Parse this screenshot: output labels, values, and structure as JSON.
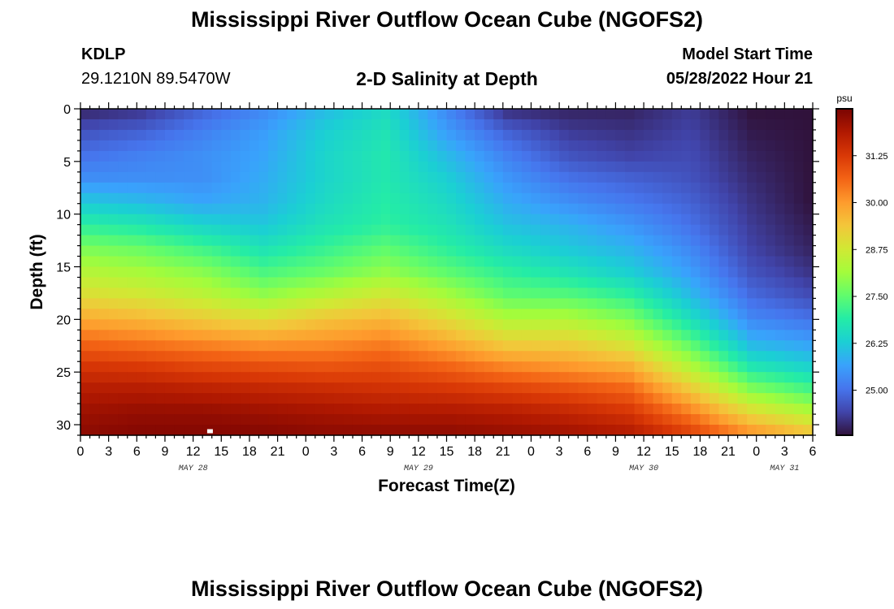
{
  "header": {
    "title": "Mississippi River Outflow Ocean Cube (NGOFS2)",
    "station_id": "KDLP",
    "coordinates": "29.1210N  89.5470W",
    "subtitle": "2-D Salinity at Depth",
    "model_start_label": "Model Start Time",
    "model_start_value": "05/28/2022 Hour 21"
  },
  "footer": {
    "title": "Mississippi River Outflow Ocean Cube (NGOFS2)"
  },
  "chart_data": {
    "type": "heatmap",
    "title": "2-D Salinity at Depth",
    "xlabel": "Forecast Time(Z)",
    "ylabel": "Depth (ft)",
    "x_tick_labels": [
      "0",
      "3",
      "6",
      "9",
      "12",
      "15",
      "18",
      "21",
      "0",
      "3",
      "6",
      "9",
      "12",
      "15",
      "18",
      "21",
      "0",
      "3",
      "6",
      "9",
      "12",
      "15",
      "18",
      "21",
      "0",
      "3",
      "6"
    ],
    "date_labels": [
      "MAY 28",
      "MAY 29",
      "MAY 30",
      "MAY 31"
    ],
    "x_range_hours": [
      0,
      78
    ],
    "y_range_ft": [
      0,
      31
    ],
    "y_ticks": [
      0,
      5,
      10,
      15,
      20,
      25,
      30
    ],
    "colorbar": {
      "unit": "psu",
      "tick_labels": [
        "25.00",
        "26.25",
        "27.50",
        "28.75",
        "30.00",
        "31.25"
      ],
      "tick_values": [
        25.0,
        26.25,
        27.5,
        28.75,
        30.0,
        31.25
      ],
      "range": [
        23.8,
        32.5
      ],
      "colors": [
        "#30123b",
        "#4145ab",
        "#4675ed",
        "#39a2fc",
        "#1bcfd4",
        "#24eca6",
        "#61fc6c",
        "#a4fc3b",
        "#d1e834",
        "#f3c63a",
        "#fe9b2d",
        "#f36315",
        "#d93806",
        "#b11901",
        "#7a0402"
      ]
    },
    "salinity_psu": [
      [
        24.0,
        24.2,
        24.8,
        25.3,
        26.0,
        26.5,
        25.3,
        24.1,
        24.0,
        24.0,
        24.3,
        23.8,
        23.8
      ],
      [
        24.6,
        24.8,
        25.2,
        25.6,
        26.3,
        26.7,
        25.6,
        24.8,
        24.3,
        24.2,
        24.4,
        23.9,
        23.8
      ],
      [
        25.0,
        25.2,
        25.4,
        25.7,
        26.4,
        26.8,
        26.0,
        25.2,
        24.6,
        24.4,
        24.5,
        24.0,
        23.8
      ],
      [
        25.4,
        25.4,
        25.4,
        25.8,
        26.4,
        26.8,
        26.3,
        25.5,
        25.0,
        24.8,
        24.6,
        24.1,
        23.8
      ],
      [
        26.2,
        26.0,
        25.7,
        25.9,
        26.5,
        26.9,
        26.5,
        25.8,
        25.4,
        25.1,
        24.8,
        24.2,
        23.8
      ],
      [
        27.0,
        26.8,
        26.4,
        26.2,
        26.7,
        27.0,
        26.7,
        26.1,
        25.9,
        25.5,
        25.0,
        24.3,
        23.9
      ],
      [
        27.8,
        27.6,
        27.2,
        26.7,
        27.1,
        27.5,
        27.0,
        26.5,
        26.2,
        25.9,
        25.3,
        24.4,
        24.0
      ],
      [
        28.4,
        28.2,
        27.9,
        27.3,
        27.6,
        28.0,
        27.5,
        27.0,
        26.7,
        26.3,
        25.6,
        24.6,
        24.2
      ],
      [
        29.0,
        28.8,
        28.5,
        28.0,
        28.4,
        28.8,
        28.2,
        27.5,
        27.4,
        27.0,
        26.0,
        24.9,
        24.5
      ],
      [
        29.8,
        29.6,
        29.3,
        29.0,
        29.4,
        29.6,
        29.0,
        28.3,
        28.3,
        27.8,
        26.6,
        25.3,
        25.0
      ],
      [
        30.6,
        30.4,
        30.2,
        30.0,
        30.1,
        30.3,
        29.8,
        29.2,
        29.2,
        28.7,
        27.4,
        25.9,
        25.6
      ],
      [
        31.3,
        31.2,
        31.0,
        30.9,
        30.8,
        30.9,
        30.6,
        30.2,
        30.0,
        29.7,
        28.3,
        26.7,
        26.3
      ],
      [
        31.8,
        31.8,
        31.7,
        31.6,
        31.5,
        31.4,
        31.3,
        31.1,
        30.9,
        30.6,
        29.3,
        27.8,
        27.2
      ],
      [
        32.1,
        32.2,
        32.2,
        32.1,
        32.0,
        31.9,
        31.9,
        31.8,
        31.6,
        31.3,
        30.3,
        29.0,
        28.3
      ],
      [
        32.3,
        32.4,
        32.4,
        32.4,
        32.3,
        32.3,
        32.3,
        32.2,
        32.1,
        31.9,
        31.2,
        30.2,
        29.5
      ]
    ]
  }
}
